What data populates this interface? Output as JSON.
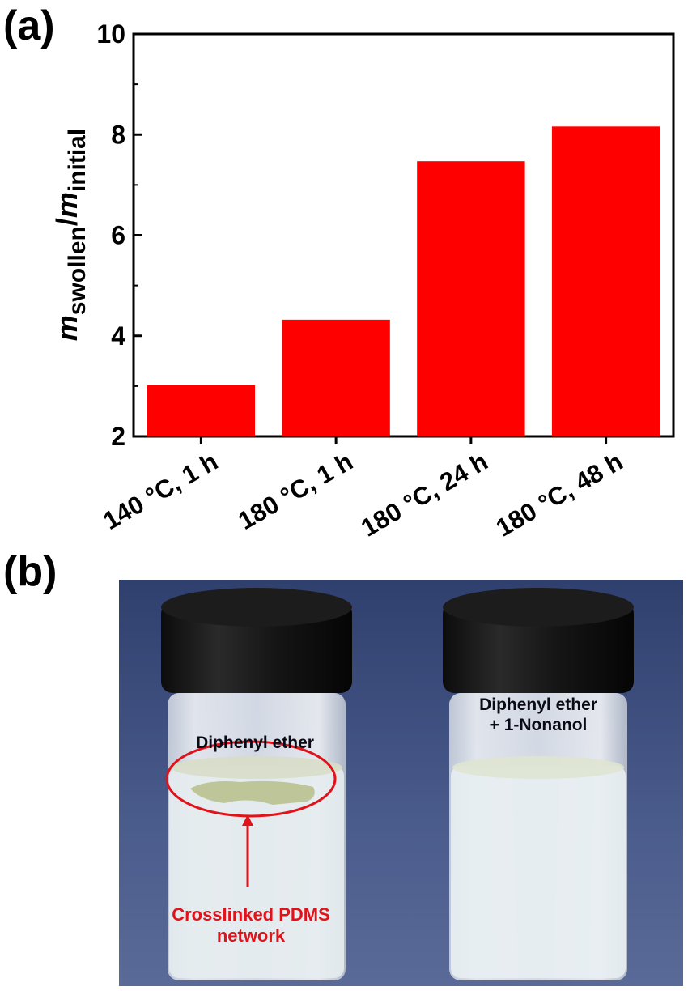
{
  "panels": {
    "a": "(a)",
    "b": "(b)"
  },
  "chart_data": {
    "type": "bar",
    "categories": [
      "140 °C, 1 h",
      "180 °C, 1 h",
      "180 °C, 24 h",
      "180 °C, 48 h"
    ],
    "values": [
      3.02,
      4.32,
      7.47,
      8.16
    ],
    "ylabel": {
      "m1": "m",
      "sub1": "swollen",
      "slash": "/",
      "m2": "m",
      "sub2": "initial"
    },
    "xlabel": "",
    "ylim": [
      2,
      10
    ],
    "yticks": [
      "2",
      "4",
      "6",
      "8",
      "10"
    ],
    "bar_color": "#ff0000",
    "grid": false,
    "legend": "none"
  },
  "photo": {
    "left_vial_label": "Diphenyl ether",
    "right_vial_label_line1": "Diphenyl ether",
    "right_vial_label_line2": "+ 1-Nonanol",
    "pdms_label_line1": "Crosslinked PDMS",
    "pdms_label_line2": "network",
    "background_color": "#3f5280",
    "annotation_color": "#e0121a"
  }
}
